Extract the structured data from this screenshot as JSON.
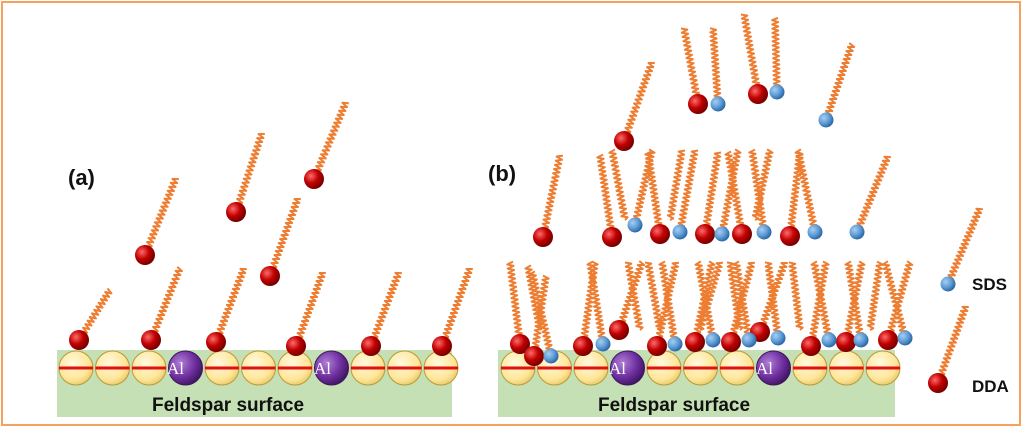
{
  "panels": {
    "a": {
      "label": "(a)",
      "surface_label": "Feldspar surface",
      "al_label": "Al"
    },
    "b": {
      "label": "(b)",
      "surface_label": "Feldspar surface",
      "al_label": "Al"
    }
  },
  "legend": {
    "sds_label": "SDS",
    "dda_label": "DDA"
  },
  "colors": {
    "border": "#f5a25c",
    "surface_fill": "#c5e0b4",
    "lattice_atom": "#ffe699",
    "lattice_line": "#e01010",
    "al_atom": "#7030a0",
    "dda_head": "#c00000",
    "sds_head": "#5b9bd5",
    "tail": "#ed7d31"
  }
}
